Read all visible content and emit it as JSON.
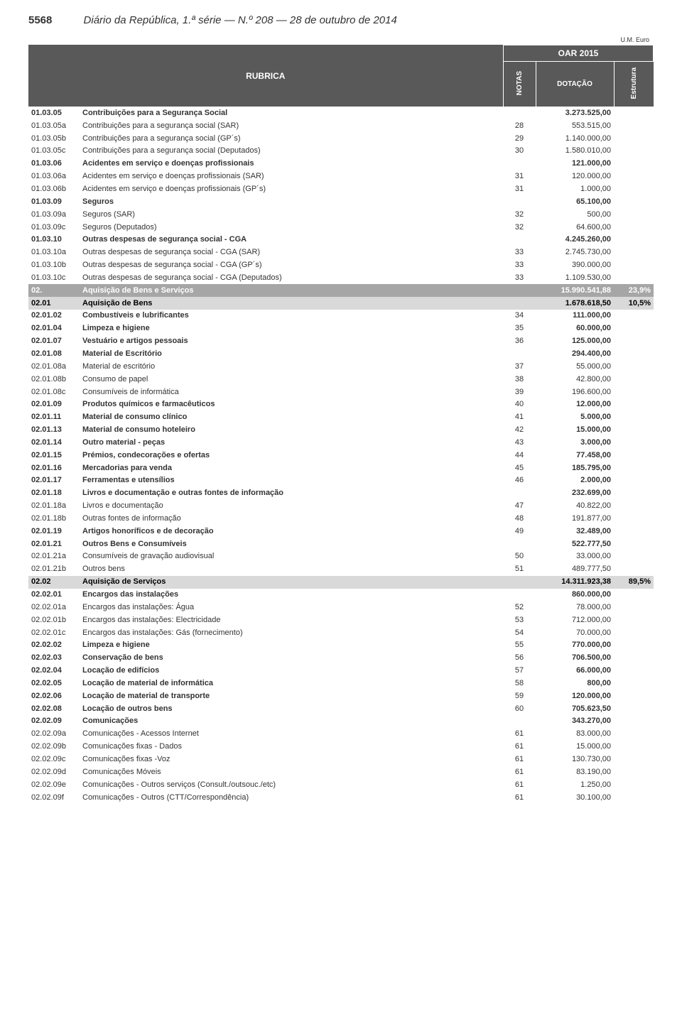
{
  "header": {
    "page_num": "5568",
    "journal_title": "Diário da República, 1.ª série — N.º 208 — 28 de outubro de 2014",
    "unit_label": "U.M. Euro",
    "oar_label": "OAR 2015",
    "col_rubrica": "RUBRICA",
    "col_notas": "NOTAS",
    "col_dotacao": "DOTAÇÃO",
    "col_estrutura": "Estrutura"
  },
  "rows": [
    {
      "type": "bold",
      "code": "01.03.05",
      "desc": "Contribuições para a Segurança Social",
      "notas": "",
      "dotacao": "3.273.525,00",
      "estr": ""
    },
    {
      "type": "normal",
      "code": "01.03.05a",
      "desc": "Contribuições para a segurança social (SAR)",
      "notas": "28",
      "dotacao": "553.515,00",
      "estr": ""
    },
    {
      "type": "normal",
      "code": "01.03.05b",
      "desc": "Contribuições para a segurança social (GP´s)",
      "notas": "29",
      "dotacao": "1.140.000,00",
      "estr": ""
    },
    {
      "type": "normal",
      "code": "01.03.05c",
      "desc": "Contribuições para a segurança social (Deputados)",
      "notas": "30",
      "dotacao": "1.580.010,00",
      "estr": ""
    },
    {
      "type": "bold",
      "code": "01.03.06",
      "desc": "Acidentes em serviço e doenças profissionais",
      "notas": "",
      "dotacao": "121.000,00",
      "estr": ""
    },
    {
      "type": "normal",
      "code": "01.03.06a",
      "desc": "Acidentes em serviço e doenças profissionais (SAR)",
      "notas": "31",
      "dotacao": "120.000,00",
      "estr": ""
    },
    {
      "type": "normal",
      "code": "01.03.06b",
      "desc": "Acidentes em serviço e doenças profissionais (GP´s)",
      "notas": "31",
      "dotacao": "1.000,00",
      "estr": ""
    },
    {
      "type": "bold",
      "code": "01.03.09",
      "desc": "Seguros",
      "notas": "",
      "dotacao": "65.100,00",
      "estr": ""
    },
    {
      "type": "normal",
      "code": "01.03.09a",
      "desc": "Seguros (SAR)",
      "notas": "32",
      "dotacao": "500,00",
      "estr": ""
    },
    {
      "type": "normal",
      "code": "01.03.09c",
      "desc": "Seguros (Deputados)",
      "notas": "32",
      "dotacao": "64.600,00",
      "estr": ""
    },
    {
      "type": "bold",
      "code": "01.03.10",
      "desc": "Outras despesas de segurança social - CGA",
      "notas": "",
      "dotacao": "4.245.260,00",
      "estr": ""
    },
    {
      "type": "normal",
      "code": "01.03.10a",
      "desc": "Outras despesas de segurança social - CGA (SAR)",
      "notas": "33",
      "dotacao": "2.745.730,00",
      "estr": ""
    },
    {
      "type": "normal",
      "code": "01.03.10b",
      "desc": "Outras despesas de segurança social - CGA (GP´s)",
      "notas": "33",
      "dotacao": "390.000,00",
      "estr": ""
    },
    {
      "type": "normal",
      "code": "01.03.10c",
      "desc": "Outras despesas de segurança social - CGA (Deputados)",
      "notas": "33",
      "dotacao": "1.109.530,00",
      "estr": ""
    },
    {
      "type": "section",
      "code": "02.",
      "desc": "Aquisição de Bens e Serviços",
      "notas": "",
      "dotacao": "15.990.541,88",
      "estr": "23,9%"
    },
    {
      "type": "subsection",
      "code": "02.01",
      "desc": "Aquisição de Bens",
      "notas": "",
      "dotacao": "1.678.618,50",
      "estr": "10,5%"
    },
    {
      "type": "bold",
      "code": "02.01.02",
      "desc": "Combustíveis e lubrificantes",
      "notas": "34",
      "dotacao": "111.000,00",
      "estr": ""
    },
    {
      "type": "bold",
      "code": "02.01.04",
      "desc": "Limpeza e higiene",
      "notas": "35",
      "dotacao": "60.000,00",
      "estr": ""
    },
    {
      "type": "bold",
      "code": "02.01.07",
      "desc": "Vestuário e artigos pessoais",
      "notas": "36",
      "dotacao": "125.000,00",
      "estr": ""
    },
    {
      "type": "bold",
      "code": "02.01.08",
      "desc": "Material de Escritório",
      "notas": "",
      "dotacao": "294.400,00",
      "estr": ""
    },
    {
      "type": "normal",
      "code": "02.01.08a",
      "desc": "Material de escritório",
      "notas": "37",
      "dotacao": "55.000,00",
      "estr": ""
    },
    {
      "type": "normal",
      "code": "02.01.08b",
      "desc": "Consumo de papel",
      "notas": "38",
      "dotacao": "42.800,00",
      "estr": ""
    },
    {
      "type": "normal",
      "code": "02.01.08c",
      "desc": "Consumíveis de informática",
      "notas": "39",
      "dotacao": "196.600,00",
      "estr": ""
    },
    {
      "type": "bold",
      "code": "02.01.09",
      "desc": "Produtos químicos e farmacêuticos",
      "notas": "40",
      "dotacao": "12.000,00",
      "estr": ""
    },
    {
      "type": "bold",
      "code": "02.01.11",
      "desc": "Material de consumo clínico",
      "notas": "41",
      "dotacao": "5.000,00",
      "estr": ""
    },
    {
      "type": "bold",
      "code": "02.01.13",
      "desc": "Material de consumo hoteleiro",
      "notas": "42",
      "dotacao": "15.000,00",
      "estr": ""
    },
    {
      "type": "bold",
      "code": "02.01.14",
      "desc": "Outro material - peças",
      "notas": "43",
      "dotacao": "3.000,00",
      "estr": ""
    },
    {
      "type": "bold",
      "code": "02.01.15",
      "desc": "Prémios, condecorações e ofertas",
      "notas": "44",
      "dotacao": "77.458,00",
      "estr": ""
    },
    {
      "type": "bold",
      "code": "02.01.16",
      "desc": "Mercadorias para venda",
      "notas": "45",
      "dotacao": "185.795,00",
      "estr": ""
    },
    {
      "type": "bold",
      "code": "02.01.17",
      "desc": "Ferramentas e utensílios",
      "notas": "46",
      "dotacao": "2.000,00",
      "estr": ""
    },
    {
      "type": "bold",
      "code": "02.01.18",
      "desc": "Livros e documentação e outras fontes de informação",
      "notas": "",
      "dotacao": "232.699,00",
      "estr": ""
    },
    {
      "type": "normal",
      "code": "02.01.18a",
      "desc": "Livros e documentação",
      "notas": "47",
      "dotacao": "40.822,00",
      "estr": ""
    },
    {
      "type": "normal",
      "code": "02.01.18b",
      "desc": "Outras fontes de informação",
      "notas": "48",
      "dotacao": "191.877,00",
      "estr": ""
    },
    {
      "type": "bold",
      "code": "02.01.19",
      "desc": "Artigos honoríficos e de decoração",
      "notas": "49",
      "dotacao": "32.489,00",
      "estr": ""
    },
    {
      "type": "bold",
      "code": "02.01.21",
      "desc": "Outros Bens e Consumíveis",
      "notas": "",
      "dotacao": "522.777,50",
      "estr": ""
    },
    {
      "type": "normal",
      "code": "02.01.21a",
      "desc": "Consumíveis de gravação audiovisual",
      "notas": "50",
      "dotacao": "33.000,00",
      "estr": ""
    },
    {
      "type": "normal",
      "code": "02.01.21b",
      "desc": "Outros bens",
      "notas": "51",
      "dotacao": "489.777,50",
      "estr": ""
    },
    {
      "type": "subsection",
      "code": "02.02",
      "desc": "Aquisição de Serviços",
      "notas": "",
      "dotacao": "14.311.923,38",
      "estr": "89,5%"
    },
    {
      "type": "bold",
      "code": "02.02.01",
      "desc": "Encargos das instalações",
      "notas": "",
      "dotacao": "860.000,00",
      "estr": ""
    },
    {
      "type": "normal",
      "code": "02.02.01a",
      "desc": "Encargos das instalações: Água",
      "notas": "52",
      "dotacao": "78.000,00",
      "estr": ""
    },
    {
      "type": "normal",
      "code": "02.02.01b",
      "desc": "Encargos das instalações: Electricidade",
      "notas": "53",
      "dotacao": "712.000,00",
      "estr": ""
    },
    {
      "type": "normal",
      "code": "02.02.01c",
      "desc": "Encargos das instalações: Gás (fornecimento)",
      "notas": "54",
      "dotacao": "70.000,00",
      "estr": ""
    },
    {
      "type": "bold",
      "code": "02.02.02",
      "desc": "Limpeza e higiene",
      "notas": "55",
      "dotacao": "770.000,00",
      "estr": ""
    },
    {
      "type": "bold",
      "code": "02.02.03",
      "desc": "Conservação de bens",
      "notas": "56",
      "dotacao": "706.500,00",
      "estr": ""
    },
    {
      "type": "bold",
      "code": "02.02.04",
      "desc": "Locação de edifícios",
      "notas": "57",
      "dotacao": "66.000,00",
      "estr": ""
    },
    {
      "type": "bold",
      "code": "02.02.05",
      "desc": "Locação de material de informática",
      "notas": "58",
      "dotacao": "800,00",
      "estr": ""
    },
    {
      "type": "bold",
      "code": "02.02.06",
      "desc": "Locação de material de transporte",
      "notas": "59",
      "dotacao": "120.000,00",
      "estr": ""
    },
    {
      "type": "bold",
      "code": "02.02.08",
      "desc": "Locação de outros bens",
      "notas": "60",
      "dotacao": "705.623,50",
      "estr": ""
    },
    {
      "type": "bold",
      "code": "02.02.09",
      "desc": "Comunicações",
      "notas": "",
      "dotacao": "343.270,00",
      "estr": ""
    },
    {
      "type": "normal",
      "code": "02.02.09a",
      "desc": "Comunicações - Acessos Internet",
      "notas": "61",
      "dotacao": "83.000,00",
      "estr": ""
    },
    {
      "type": "normal",
      "code": "02.02.09b",
      "desc": "Comunicações fixas - Dados",
      "notas": "61",
      "dotacao": "15.000,00",
      "estr": ""
    },
    {
      "type": "normal",
      "code": "02.02.09c",
      "desc": "Comunicações fixas -Voz",
      "notas": "61",
      "dotacao": "130.730,00",
      "estr": ""
    },
    {
      "type": "normal",
      "code": "02.02.09d",
      "desc": "Comunicações Móveis",
      "notas": "61",
      "dotacao": "83.190,00",
      "estr": ""
    },
    {
      "type": "normal",
      "code": "02.02.09e",
      "desc": "Comunicações - Outros serviços (Consult./outsouc./etc)",
      "notas": "61",
      "dotacao": "1.250,00",
      "estr": ""
    },
    {
      "type": "normal",
      "code": "02.02.09f",
      "desc": "Comunicações - Outros (CTT/Correspondência)",
      "notas": "61",
      "dotacao": "30.100,00",
      "estr": ""
    }
  ]
}
